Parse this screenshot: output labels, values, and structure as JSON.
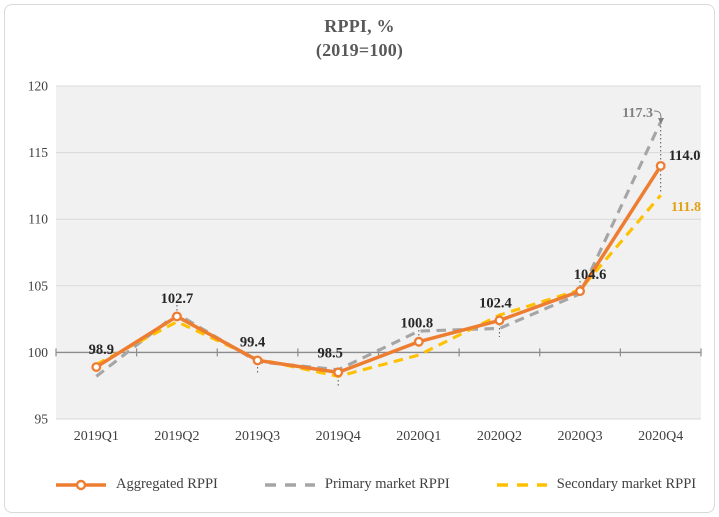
{
  "title": {
    "line1": "RPPI, %",
    "line2": "(2019=100)"
  },
  "chart_data": {
    "type": "line",
    "title": "RPPI, % (2019=100)",
    "categories": [
      "2019Q1",
      "2019Q2",
      "2019Q3",
      "2019Q4",
      "2020Q1",
      "2020Q2",
      "2020Q3",
      "2020Q4"
    ],
    "ylim": [
      95,
      120
    ],
    "ytick_step": 5,
    "grid": true,
    "legend_position": "bottom",
    "baseline_value": 100,
    "colors": {
      "plot_background": "#f1f1f1",
      "gridline": "#d9d9d9",
      "baseline_axis": "#8c8c8c",
      "axis_text": "#404040",
      "leader_line": "#595959"
    },
    "series": [
      {
        "name": "Aggregated RPPI",
        "color": "#ED7D31",
        "line_style": "solid",
        "marker": "circle",
        "values": [
          98.9,
          102.7,
          99.4,
          98.5,
          100.8,
          102.4,
          104.6,
          114.0
        ],
        "data_labels": [
          "98.9",
          "102.7",
          "99.4",
          "98.5",
          "100.8",
          "102.4",
          "104.6",
          "114.0"
        ],
        "label_color": "#262626"
      },
      {
        "name": "Primary market RPPI",
        "color": "#A5A5A5",
        "line_style": "dashed",
        "marker": "none",
        "values": [
          98.2,
          102.9,
          99.3,
          98.7,
          101.6,
          101.8,
          104.4,
          117.3
        ],
        "end_label": "117.3",
        "label_color": "#7F7F7F"
      },
      {
        "name": "Secondary market RPPI",
        "color": "#FFC000",
        "line_style": "dashed",
        "marker": "none",
        "values": [
          99.1,
          102.3,
          99.5,
          98.2,
          99.8,
          102.8,
          104.7,
          111.8
        ],
        "end_label": "111.8",
        "label_color": "#E2A013"
      }
    ]
  }
}
